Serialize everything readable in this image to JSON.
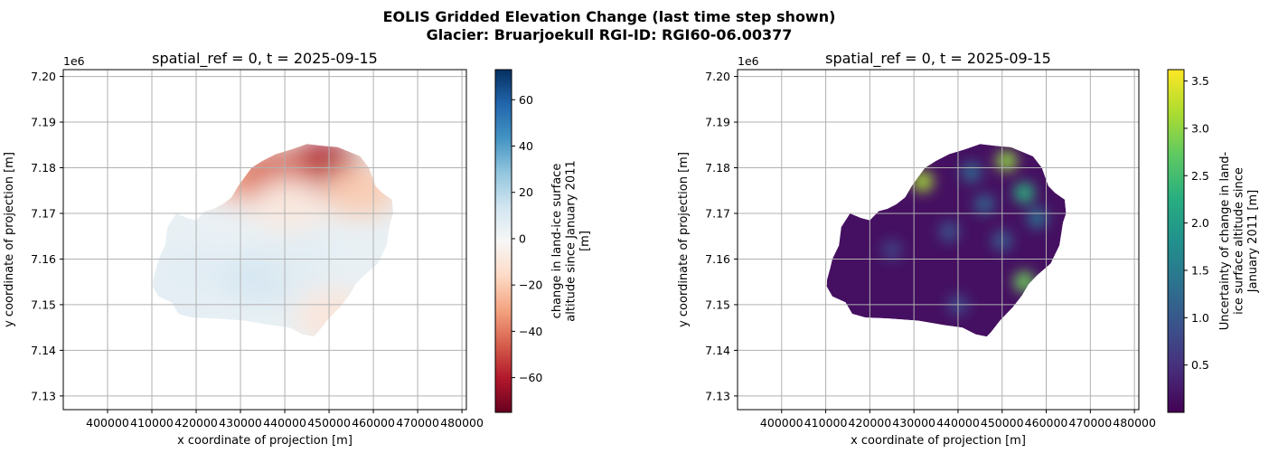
{
  "figure": {
    "title_line1": "EOLIS Gridded Elevation Change (last time step shown)",
    "title_line2": "Glacier: Bruarjoekull RGI-ID: RGI60-06.00377"
  },
  "chart_data": [
    {
      "type": "heatmap",
      "title": "spatial_ref = 0, t = 2025-09-15",
      "xlabel": "x coordinate of projection [m]",
      "ylabel": "y coordinate of projection [m]",
      "x_ticks": [
        "400000",
        "410000",
        "420000",
        "430000",
        "440000",
        "450000",
        "460000",
        "470000",
        "480000"
      ],
      "x_tick_values": [
        400000,
        410000,
        420000,
        430000,
        440000,
        450000,
        460000,
        470000,
        480000
      ],
      "y_ticks": [
        "7.13",
        "7.14",
        "7.15",
        "7.16",
        "7.17",
        "7.18",
        "7.19",
        "7.20"
      ],
      "y_tick_values": [
        7.13,
        7.14,
        7.15,
        7.16,
        7.17,
        7.18,
        7.19,
        7.2
      ],
      "y_offset_label": "1e6",
      "xlim": [
        390000,
        481000
      ],
      "ylim": [
        7.127,
        7.2015
      ],
      "grid": true,
      "colormap": "RdBu",
      "colorbar": {
        "label_lines": [
          "change in land-ice surface",
          "altitude since January 2011",
          "[m]"
        ],
        "range": [
          -75,
          73
        ],
        "ticks": [
          "60",
          "40",
          "20",
          "0",
          "−20",
          "−40",
          "−60"
        ],
        "tick_values": [
          60,
          40,
          20,
          0,
          -20,
          -40,
          -60
        ]
      },
      "zones": [
        {
          "x": 430000,
          "y": 7.1755,
          "value": -30
        },
        {
          "x": 447000,
          "y": 7.1785,
          "value": -70
        },
        {
          "x": 449000,
          "y": 7.18,
          "value": -60
        },
        {
          "x": 438000,
          "y": 7.178,
          "value": -45
        },
        {
          "x": 457000,
          "y": 7.175,
          "value": -20
        },
        {
          "x": 441000,
          "y": 7.172,
          "value": -8
        },
        {
          "x": 425000,
          "y": 7.168,
          "value": 4
        },
        {
          "x": 420000,
          "y": 7.157,
          "value": 8
        },
        {
          "x": 435000,
          "y": 7.156,
          "value": 12
        },
        {
          "x": 445000,
          "y": 7.16,
          "value": 7
        },
        {
          "x": 457000,
          "y": 7.16,
          "value": 5
        },
        {
          "x": 451000,
          "y": 7.1475,
          "value": -10
        },
        {
          "x": 415000,
          "y": 7.15,
          "value": 6
        }
      ]
    },
    {
      "type": "heatmap",
      "title": "spatial_ref = 0, t = 2025-09-15",
      "xlabel": "x coordinate of projection [m]",
      "ylabel": "y coordinate of projection [m]",
      "x_ticks": [
        "400000",
        "410000",
        "420000",
        "430000",
        "440000",
        "450000",
        "460000",
        "470000",
        "480000"
      ],
      "x_tick_values": [
        400000,
        410000,
        420000,
        430000,
        440000,
        450000,
        460000,
        470000,
        480000
      ],
      "y_ticks": [
        "7.13",
        "7.14",
        "7.15",
        "7.16",
        "7.17",
        "7.18",
        "7.19",
        "7.20"
      ],
      "y_tick_values": [
        7.13,
        7.14,
        7.15,
        7.16,
        7.17,
        7.18,
        7.19,
        7.2
      ],
      "y_offset_label": "1e6",
      "xlim": [
        390000,
        481000
      ],
      "ylim": [
        7.127,
        7.2015
      ],
      "grid": true,
      "colormap": "viridis",
      "colorbar": {
        "label_lines": [
          "Uncertainty of change in land-",
          "ice surface altitude since",
          "January 2011 [m]"
        ],
        "range": [
          0,
          3.62
        ],
        "ticks": [
          "3.5",
          "3.0",
          "2.5",
          "2.0",
          "1.5",
          "1.0",
          "0.5"
        ],
        "tick_values": [
          3.5,
          3.0,
          2.5,
          2.0,
          1.5,
          1.0,
          0.5
        ]
      },
      "zones": [
        {
          "x": 432000,
          "y": 7.177,
          "value": 3.1
        },
        {
          "x": 451000,
          "y": 7.1815,
          "value": 3.0
        },
        {
          "x": 455000,
          "y": 7.1745,
          "value": 2.3
        },
        {
          "x": 455000,
          "y": 7.155,
          "value": 2.8
        },
        {
          "x": 443000,
          "y": 7.179,
          "value": 1.2
        },
        {
          "x": 446000,
          "y": 7.172,
          "value": 1.1
        },
        {
          "x": 438000,
          "y": 7.166,
          "value": 0.9
        },
        {
          "x": 450000,
          "y": 7.164,
          "value": 1.0
        },
        {
          "x": 425000,
          "y": 7.162,
          "value": 0.7
        },
        {
          "x": 440000,
          "y": 7.15,
          "value": 0.8
        },
        {
          "x": 458000,
          "y": 7.169,
          "value": 1.3
        }
      ]
    }
  ]
}
